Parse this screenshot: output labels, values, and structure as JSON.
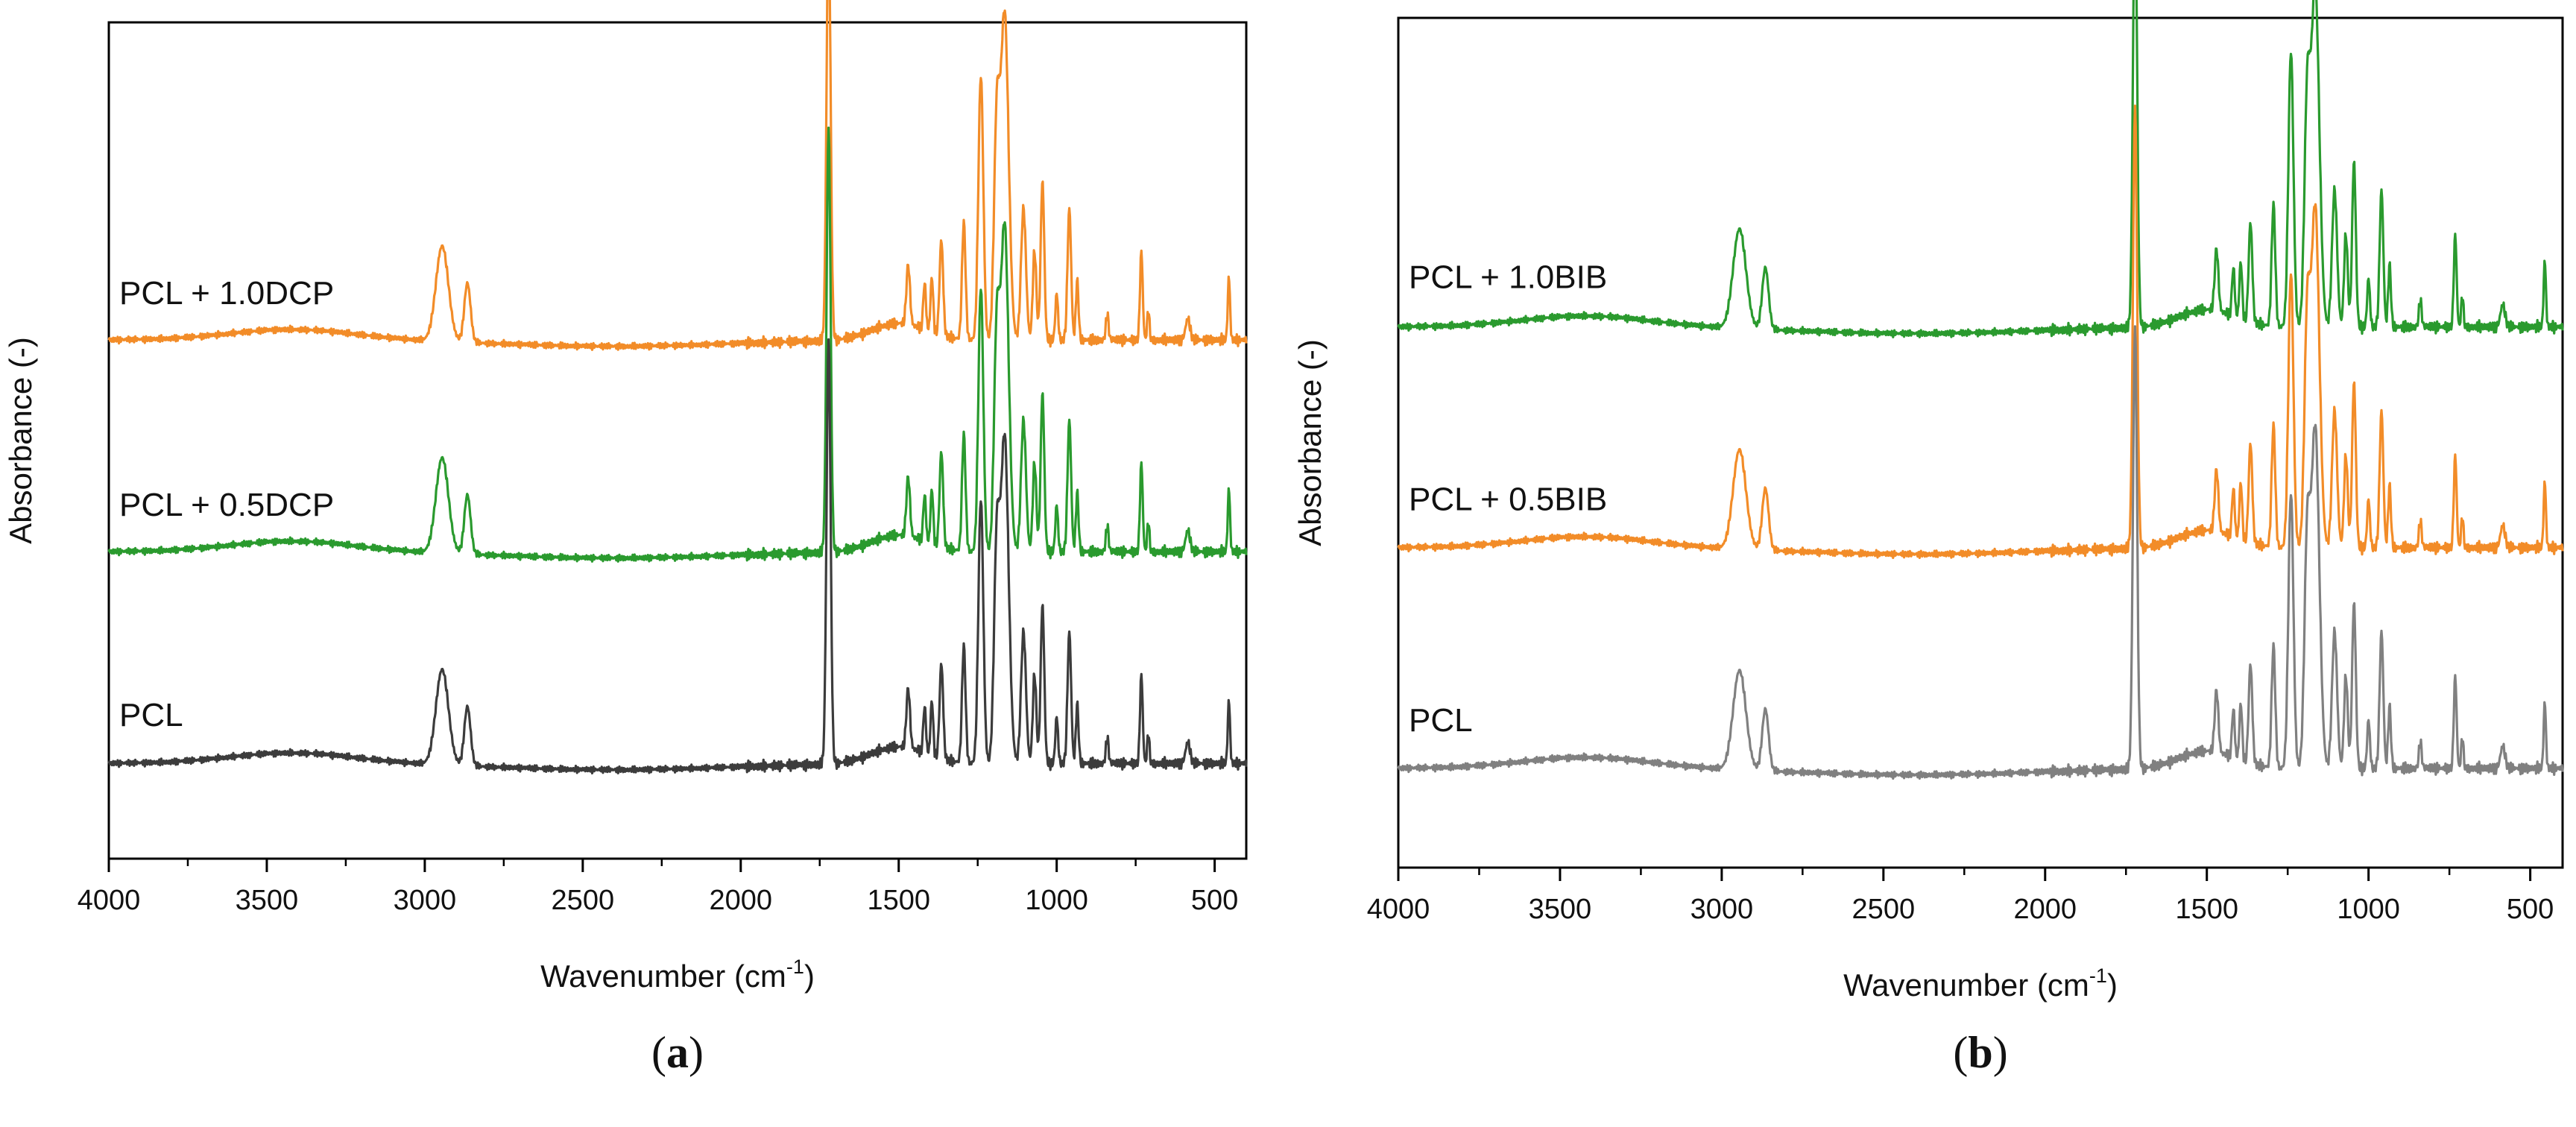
{
  "chart_data": [
    {
      "type": "line",
      "panel_label": "(a)",
      "panel_letter": "a",
      "xlabel": "Wavenumber (cm",
      "xlabel_sup": "-1",
      "xlabel_end": ")",
      "ylabel": "Absorbance (-)",
      "xlim": [
        4000,
        400
      ],
      "x_ticks": [
        4000,
        3500,
        3000,
        2500,
        2000,
        1500,
        1000,
        500
      ],
      "grid": false,
      "y_ticks_shown": false,
      "series": [
        {
          "name": "PCL + 1.0DCP",
          "color": "#f28c28",
          "baseline": 2.0,
          "peaks": [
            [
              2945,
              0.45,
              28
            ],
            [
              2865,
              0.28,
              14
            ],
            [
              1722,
              2.0,
              9
            ],
            [
              1470,
              0.28,
              8
            ],
            [
              1418,
              0.22,
              6
            ],
            [
              1395,
              0.26,
              6
            ],
            [
              1365,
              0.45,
              8
            ],
            [
              1294,
              0.55,
              8
            ],
            [
              1240,
              1.25,
              11
            ],
            [
              1190,
              0.95,
              12
            ],
            [
              1165,
              1.55,
              18
            ],
            [
              1105,
              0.62,
              11
            ],
            [
              1070,
              0.42,
              8
            ],
            [
              1045,
              0.75,
              8
            ],
            [
              1000,
              0.22,
              6
            ],
            [
              960,
              0.62,
              8
            ],
            [
              935,
              0.28,
              6
            ],
            [
              840,
              0.12,
              6
            ],
            [
              732,
              0.42,
              6
            ],
            [
              710,
              0.14,
              5
            ],
            [
              585,
              0.1,
              10
            ],
            [
              455,
              0.3,
              5
            ]
          ]
        },
        {
          "name": "PCL + 0.5DCP",
          "color": "#2a9a2e",
          "baseline": 1.0,
          "peaks": [
            [
              2945,
              0.45,
              28
            ],
            [
              2865,
              0.28,
              14
            ],
            [
              1722,
              2.0,
              9
            ],
            [
              1470,
              0.28,
              8
            ],
            [
              1418,
              0.22,
              6
            ],
            [
              1395,
              0.26,
              6
            ],
            [
              1365,
              0.45,
              8
            ],
            [
              1294,
              0.55,
              8
            ],
            [
              1240,
              1.25,
              11
            ],
            [
              1190,
              0.95,
              12
            ],
            [
              1165,
              1.55,
              18
            ],
            [
              1105,
              0.62,
              11
            ],
            [
              1070,
              0.42,
              8
            ],
            [
              1045,
              0.75,
              8
            ],
            [
              1000,
              0.22,
              6
            ],
            [
              960,
              0.62,
              8
            ],
            [
              935,
              0.28,
              6
            ],
            [
              840,
              0.12,
              6
            ],
            [
              732,
              0.42,
              6
            ],
            [
              710,
              0.14,
              5
            ],
            [
              585,
              0.1,
              10
            ],
            [
              455,
              0.3,
              5
            ]
          ]
        },
        {
          "name": "PCL",
          "color": "#3c3c3c",
          "baseline": 0.0,
          "peaks": [
            [
              2945,
              0.45,
              28
            ],
            [
              2865,
              0.28,
              14
            ],
            [
              1722,
              2.0,
              9
            ],
            [
              1470,
              0.28,
              8
            ],
            [
              1418,
              0.22,
              6
            ],
            [
              1395,
              0.26,
              6
            ],
            [
              1365,
              0.45,
              8
            ],
            [
              1294,
              0.55,
              8
            ],
            [
              1240,
              1.25,
              11
            ],
            [
              1190,
              0.95,
              12
            ],
            [
              1165,
              1.55,
              18
            ],
            [
              1105,
              0.62,
              11
            ],
            [
              1070,
              0.42,
              8
            ],
            [
              1045,
              0.75,
              8
            ],
            [
              1000,
              0.22,
              6
            ],
            [
              960,
              0.62,
              8
            ],
            [
              935,
              0.28,
              6
            ],
            [
              840,
              0.12,
              6
            ],
            [
              732,
              0.42,
              6
            ],
            [
              710,
              0.14,
              5
            ],
            [
              585,
              0.1,
              10
            ],
            [
              455,
              0.3,
              5
            ]
          ]
        }
      ],
      "ylim": [
        -0.45,
        3.5
      ]
    },
    {
      "type": "line",
      "panel_label": "(b)",
      "panel_letter": "b",
      "xlabel": "Wavenumber (cm",
      "xlabel_sup": "-1",
      "xlabel_end": ")",
      "ylabel": "Absorbance (-)",
      "xlim": [
        4000,
        400
      ],
      "x_ticks": [
        4000,
        3500,
        3000,
        2500,
        2000,
        1500,
        1000,
        500
      ],
      "grid": false,
      "y_ticks_shown": false,
      "series": [
        {
          "name": "PCL + 1.0BIB",
          "color": "#2a9a2e",
          "baseline": 2.0,
          "peaks": [
            [
              2945,
              0.45,
              28
            ],
            [
              2865,
              0.28,
              14
            ],
            [
              1722,
              2.0,
              9
            ],
            [
              1470,
              0.28,
              8
            ],
            [
              1418,
              0.22,
              6
            ],
            [
              1395,
              0.26,
              6
            ],
            [
              1365,
              0.45,
              8
            ],
            [
              1294,
              0.55,
              8
            ],
            [
              1240,
              1.25,
              11
            ],
            [
              1190,
              0.95,
              12
            ],
            [
              1165,
              1.55,
              18
            ],
            [
              1105,
              0.62,
              11
            ],
            [
              1070,
              0.42,
              8
            ],
            [
              1045,
              0.75,
              8
            ],
            [
              1000,
              0.22,
              6
            ],
            [
              960,
              0.62,
              8
            ],
            [
              935,
              0.28,
              6
            ],
            [
              840,
              0.12,
              6
            ],
            [
              732,
              0.42,
              6
            ],
            [
              710,
              0.14,
              5
            ],
            [
              585,
              0.1,
              10
            ],
            [
              455,
              0.3,
              5
            ]
          ]
        },
        {
          "name": "PCL + 0.5BIB",
          "color": "#f28c28",
          "baseline": 1.0,
          "peaks": [
            [
              2945,
              0.45,
              28
            ],
            [
              2865,
              0.28,
              14
            ],
            [
              1722,
              2.0,
              9
            ],
            [
              1470,
              0.28,
              8
            ],
            [
              1418,
              0.22,
              6
            ],
            [
              1395,
              0.26,
              6
            ],
            [
              1365,
              0.45,
              8
            ],
            [
              1294,
              0.55,
              8
            ],
            [
              1240,
              1.25,
              11
            ],
            [
              1190,
              0.95,
              12
            ],
            [
              1165,
              1.55,
              18
            ],
            [
              1105,
              0.62,
              11
            ],
            [
              1070,
              0.42,
              8
            ],
            [
              1045,
              0.75,
              8
            ],
            [
              1000,
              0.22,
              6
            ],
            [
              960,
              0.62,
              8
            ],
            [
              935,
              0.28,
              6
            ],
            [
              840,
              0.12,
              6
            ],
            [
              732,
              0.42,
              6
            ],
            [
              710,
              0.14,
              5
            ],
            [
              585,
              0.1,
              10
            ],
            [
              455,
              0.3,
              5
            ]
          ]
        },
        {
          "name": "PCL",
          "color": "#808080",
          "baseline": 0.0,
          "peaks": [
            [
              2945,
              0.45,
              28
            ],
            [
              2865,
              0.28,
              14
            ],
            [
              1722,
              2.0,
              9
            ],
            [
              1470,
              0.28,
              8
            ],
            [
              1418,
              0.22,
              6
            ],
            [
              1395,
              0.26,
              6
            ],
            [
              1365,
              0.45,
              8
            ],
            [
              1294,
              0.55,
              8
            ],
            [
              1240,
              1.25,
              11
            ],
            [
              1190,
              0.95,
              12
            ],
            [
              1165,
              1.55,
              18
            ],
            [
              1105,
              0.62,
              11
            ],
            [
              1070,
              0.42,
              8
            ],
            [
              1045,
              0.75,
              8
            ],
            [
              1000,
              0.22,
              6
            ],
            [
              960,
              0.62,
              8
            ],
            [
              935,
              0.28,
              6
            ],
            [
              840,
              0.12,
              6
            ],
            [
              732,
              0.42,
              6
            ],
            [
              710,
              0.14,
              5
            ],
            [
              585,
              0.1,
              10
            ],
            [
              455,
              0.3,
              5
            ]
          ]
        }
      ],
      "ylim": [
        -0.45,
        3.4
      ]
    }
  ]
}
